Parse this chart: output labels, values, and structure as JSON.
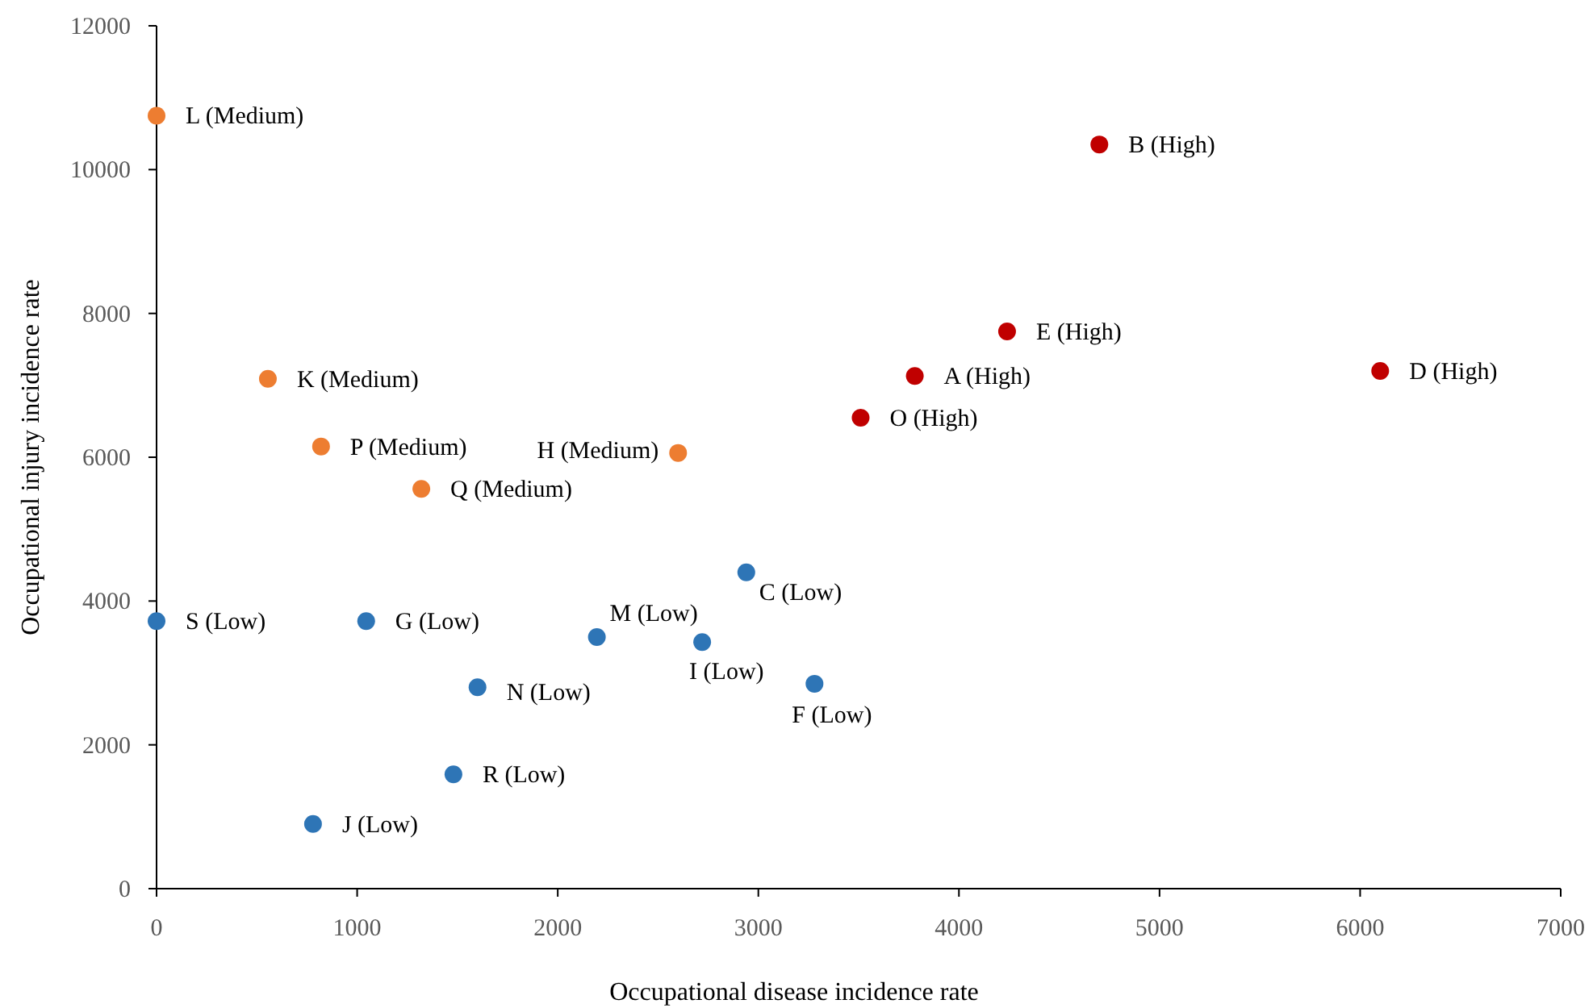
{
  "chart_data": {
    "type": "scatter",
    "xlabel": "Occupational disease incidence rate",
    "ylabel": "Occupational injury incidence rate",
    "xlim": [
      0,
      7000
    ],
    "xticks": [
      0,
      1000,
      2000,
      3000,
      4000,
      5000,
      6000,
      7000
    ],
    "ylim": [
      0,
      12000
    ],
    "yticks": [
      0,
      2000,
      4000,
      6000,
      8000,
      10000,
      12000
    ],
    "grid": false,
    "marker": "circle",
    "series": [
      {
        "color": "#c00000",
        "x": [
          4700,
          4240,
          3780,
          6100,
          3510
        ],
        "values": [
          10350,
          7750,
          7130,
          7200,
          6550
        ]
      },
      {
        "color": "#ed7d31",
        "x": [
          0,
          555,
          820,
          2600,
          1320
        ],
        "values": [
          10750,
          7090,
          6150,
          6060,
          5560
        ]
      },
      {
        "color": "#2e75b6",
        "x": [
          2940,
          0,
          1045,
          2195,
          2720,
          1600,
          3280,
          1480,
          780
        ],
        "values": [
          4400,
          3720,
          3720,
          3500,
          3430,
          2800,
          2850,
          1590,
          900
        ]
      }
    ],
    "annotations": [
      {
        "text": "B (High)",
        "x": 4700,
        "y": 10350
      },
      {
        "text": "E (High)",
        "x": 4240,
        "y": 7750
      },
      {
        "text": "A (High)",
        "x": 3780,
        "y": 7130
      },
      {
        "text": "D (High)",
        "x": 6100,
        "y": 7200
      },
      {
        "text": "O (High)",
        "x": 3510,
        "y": 6550
      },
      {
        "text": "L (Medium)",
        "x": 0,
        "y": 10750
      },
      {
        "text": "K (Medium)",
        "x": 555,
        "y": 7090
      },
      {
        "text": "P (Medium)",
        "x": 820,
        "y": 6150
      },
      {
        "text": "H (Medium)",
        "x": 2600,
        "y": 6060
      },
      {
        "text": "Q (Medium)",
        "x": 1320,
        "y": 5560
      },
      {
        "text": "C (Low)",
        "x": 2940,
        "y": 4400
      },
      {
        "text": "S (Low)",
        "x": 0,
        "y": 3720
      },
      {
        "text": "G (Low)",
        "x": 1045,
        "y": 3720
      },
      {
        "text": "M (Low)",
        "x": 2195,
        "y": 3500
      },
      {
        "text": "I (Low)",
        "x": 2720,
        "y": 3430
      },
      {
        "text": "N (Low)",
        "x": 1600,
        "y": 2800
      },
      {
        "text": "F (Low)",
        "x": 3280,
        "y": 2850
      },
      {
        "text": "R (Low)",
        "x": 1480,
        "y": 1590
      },
      {
        "text": "J (Low)",
        "x": 780,
        "y": 900
      }
    ]
  }
}
